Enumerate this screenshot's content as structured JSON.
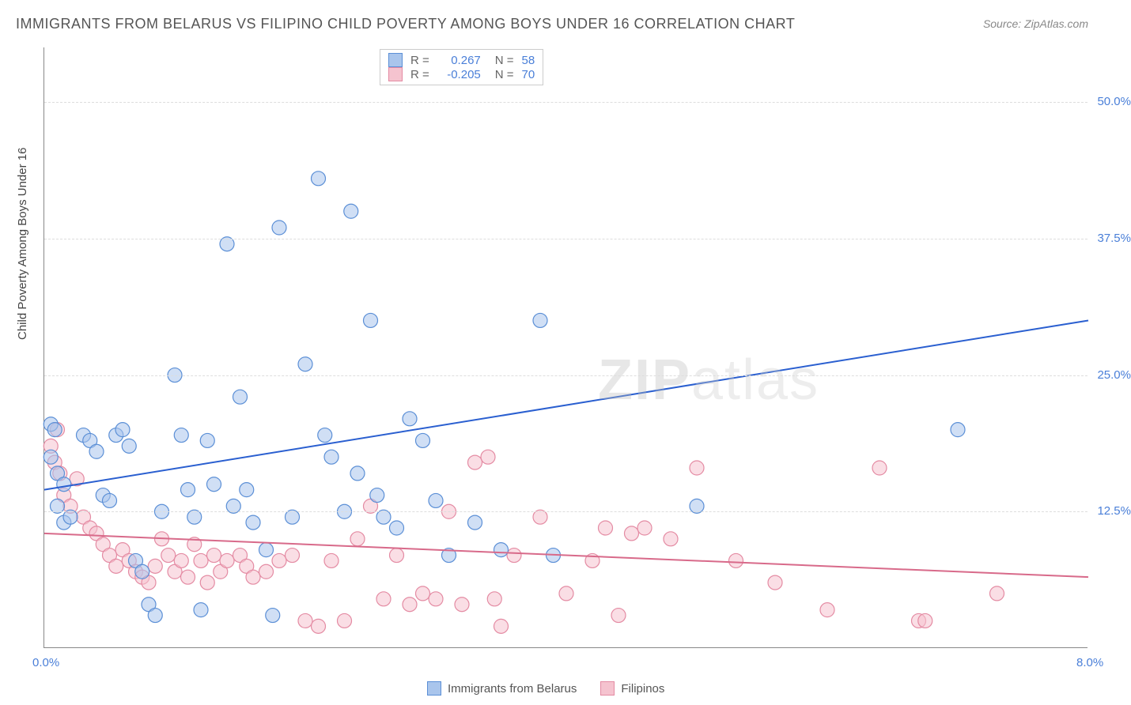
{
  "title": "IMMIGRANTS FROM BELARUS VS FILIPINO CHILD POVERTY AMONG BOYS UNDER 16 CORRELATION CHART",
  "source_label": "Source: ZipAtlas.com",
  "y_axis_title": "Child Poverty Among Boys Under 16",
  "watermark_bold": "ZIP",
  "watermark_light": "atlas",
  "chart": {
    "type": "scatter",
    "xlim": [
      0,
      8
    ],
    "ylim": [
      0,
      55
    ],
    "x_ticks": [
      {
        "val": 0,
        "label": "0.0%"
      },
      {
        "val": 8,
        "label": "8.0%"
      }
    ],
    "y_ticks": [
      {
        "val": 12.5,
        "label": "12.5%"
      },
      {
        "val": 25.0,
        "label": "25.0%"
      },
      {
        "val": 37.5,
        "label": "37.5%"
      },
      {
        "val": 50.0,
        "label": "50.0%"
      }
    ],
    "background_color": "#ffffff",
    "grid_color": "#dddddd",
    "marker_radius": 9,
    "marker_stroke_width": 1.2,
    "trendline_width": 2
  },
  "legend_top": {
    "rows": [
      {
        "swatch": "blue",
        "r_label": "R =",
        "r_val": "0.267",
        "n_label": "N =",
        "n_val": "58"
      },
      {
        "swatch": "pink",
        "r_label": "R =",
        "r_val": "-0.205",
        "n_label": "N =",
        "n_val": "70"
      }
    ]
  },
  "legend_bottom": {
    "items": [
      {
        "swatch": "blue",
        "label": "Immigrants from Belarus"
      },
      {
        "swatch": "pink",
        "label": "Filipinos"
      }
    ]
  },
  "colors": {
    "blue_fill": "#a9c5ec",
    "blue_stroke": "#5b8fd6",
    "blue_line": "#2a5fd0",
    "pink_fill": "#f5c3cf",
    "pink_stroke": "#e48ba3",
    "pink_line": "#d86a8a",
    "tick_text": "#4a7fd8",
    "legend_val": "#4a7fd8",
    "legend_lbl": "#666666"
  },
  "series": {
    "blue": {
      "trend": {
        "y_at_x0": 14.5,
        "y_at_xmax": 30.0
      },
      "points": [
        [
          0.05,
          20.5
        ],
        [
          0.08,
          20.0
        ],
        [
          0.05,
          17.5
        ],
        [
          0.1,
          16.0
        ],
        [
          0.15,
          15.0
        ],
        [
          0.1,
          13.0
        ],
        [
          0.15,
          11.5
        ],
        [
          0.2,
          12.0
        ],
        [
          0.3,
          19.5
        ],
        [
          0.35,
          19.0
        ],
        [
          0.4,
          18.0
        ],
        [
          0.45,
          14.0
        ],
        [
          0.5,
          13.5
        ],
        [
          0.55,
          19.5
        ],
        [
          0.6,
          20.0
        ],
        [
          0.65,
          18.5
        ],
        [
          0.7,
          8.0
        ],
        [
          0.75,
          7.0
        ],
        [
          0.8,
          4.0
        ],
        [
          0.85,
          3.0
        ],
        [
          0.9,
          12.5
        ],
        [
          1.0,
          25.0
        ],
        [
          1.05,
          19.5
        ],
        [
          1.1,
          14.5
        ],
        [
          1.15,
          12.0
        ],
        [
          1.2,
          3.5
        ],
        [
          1.25,
          19.0
        ],
        [
          1.3,
          15.0
        ],
        [
          1.4,
          37.0
        ],
        [
          1.45,
          13.0
        ],
        [
          1.5,
          23.0
        ],
        [
          1.55,
          14.5
        ],
        [
          1.6,
          11.5
        ],
        [
          1.7,
          9.0
        ],
        [
          1.75,
          3.0
        ],
        [
          1.8,
          38.5
        ],
        [
          1.9,
          12.0
        ],
        [
          2.0,
          26.0
        ],
        [
          2.1,
          43.0
        ],
        [
          2.15,
          19.5
        ],
        [
          2.2,
          17.5
        ],
        [
          2.3,
          12.5
        ],
        [
          2.35,
          40.0
        ],
        [
          2.4,
          16.0
        ],
        [
          2.5,
          30.0
        ],
        [
          2.55,
          14.0
        ],
        [
          2.6,
          12.0
        ],
        [
          2.7,
          11.0
        ],
        [
          2.8,
          21.0
        ],
        [
          2.9,
          19.0
        ],
        [
          3.0,
          13.5
        ],
        [
          3.1,
          8.5
        ],
        [
          3.3,
          11.5
        ],
        [
          3.5,
          9.0
        ],
        [
          3.8,
          30.0
        ],
        [
          3.9,
          8.5
        ],
        [
          5.0,
          13.0
        ],
        [
          7.0,
          20.0
        ]
      ]
    },
    "pink": {
      "trend": {
        "y_at_x0": 10.5,
        "y_at_xmax": 6.5
      },
      "points": [
        [
          0.05,
          18.5
        ],
        [
          0.08,
          17.0
        ],
        [
          0.1,
          20.0
        ],
        [
          0.12,
          16.0
        ],
        [
          0.15,
          14.0
        ],
        [
          0.2,
          13.0
        ],
        [
          0.25,
          15.5
        ],
        [
          0.3,
          12.0
        ],
        [
          0.35,
          11.0
        ],
        [
          0.4,
          10.5
        ],
        [
          0.45,
          9.5
        ],
        [
          0.5,
          8.5
        ],
        [
          0.55,
          7.5
        ],
        [
          0.6,
          9.0
        ],
        [
          0.65,
          8.0
        ],
        [
          0.7,
          7.0
        ],
        [
          0.75,
          6.5
        ],
        [
          0.8,
          6.0
        ],
        [
          0.85,
          7.5
        ],
        [
          0.9,
          10.0
        ],
        [
          0.95,
          8.5
        ],
        [
          1.0,
          7.0
        ],
        [
          1.05,
          8.0
        ],
        [
          1.1,
          6.5
        ],
        [
          1.15,
          9.5
        ],
        [
          1.2,
          8.0
        ],
        [
          1.25,
          6.0
        ],
        [
          1.3,
          8.5
        ],
        [
          1.35,
          7.0
        ],
        [
          1.4,
          8.0
        ],
        [
          1.5,
          8.5
        ],
        [
          1.55,
          7.5
        ],
        [
          1.6,
          6.5
        ],
        [
          1.7,
          7.0
        ],
        [
          1.8,
          8.0
        ],
        [
          1.9,
          8.5
        ],
        [
          2.0,
          2.5
        ],
        [
          2.1,
          2.0
        ],
        [
          2.2,
          8.0
        ],
        [
          2.3,
          2.5
        ],
        [
          2.4,
          10.0
        ],
        [
          2.5,
          13.0
        ],
        [
          2.6,
          4.5
        ],
        [
          2.7,
          8.5
        ],
        [
          2.8,
          4.0
        ],
        [
          2.9,
          5.0
        ],
        [
          3.0,
          4.5
        ],
        [
          3.1,
          12.5
        ],
        [
          3.2,
          4.0
        ],
        [
          3.3,
          17.0
        ],
        [
          3.4,
          17.5
        ],
        [
          3.45,
          4.5
        ],
        [
          3.5,
          2.0
        ],
        [
          3.6,
          8.5
        ],
        [
          3.8,
          12.0
        ],
        [
          4.0,
          5.0
        ],
        [
          4.2,
          8.0
        ],
        [
          4.3,
          11.0
        ],
        [
          4.4,
          3.0
        ],
        [
          4.5,
          10.5
        ],
        [
          4.6,
          11.0
        ],
        [
          4.8,
          10.0
        ],
        [
          5.0,
          16.5
        ],
        [
          5.3,
          8.0
        ],
        [
          5.6,
          6.0
        ],
        [
          6.0,
          3.5
        ],
        [
          6.4,
          16.5
        ],
        [
          6.7,
          2.5
        ],
        [
          6.75,
          2.5
        ],
        [
          7.3,
          5.0
        ]
      ]
    }
  }
}
